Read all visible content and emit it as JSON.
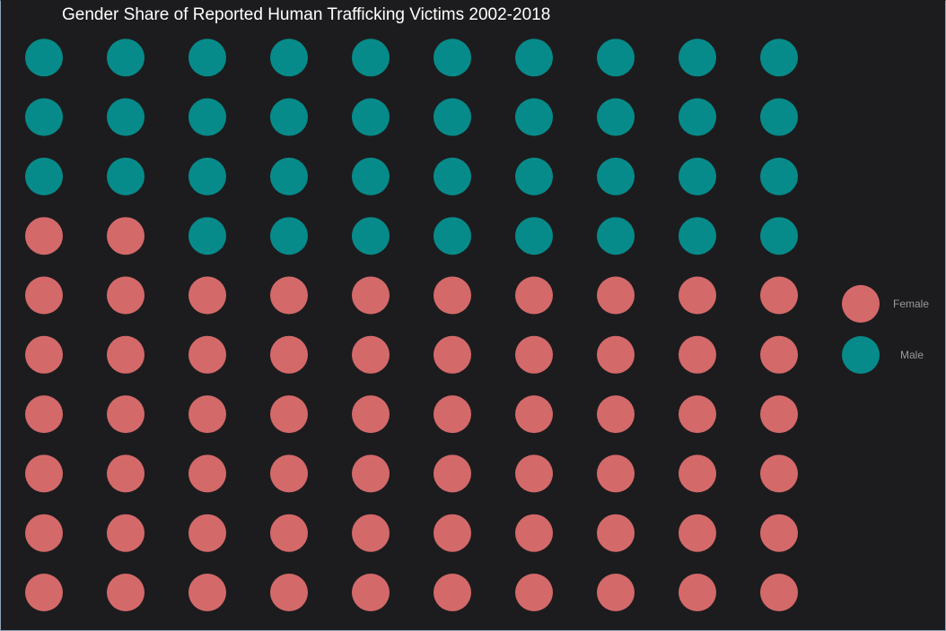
{
  "colors": {
    "background": "#1c1c1e",
    "title": "#ffffff",
    "legend_text": "#9a9a9a"
  },
  "chart_data": {
    "type": "waffle",
    "title": "Gender Share of Reported Human Trafficking Victims 2002-2018",
    "xlabel": "",
    "ylabel": "",
    "grid_rows": 10,
    "grid_cols": 10,
    "total_units": 100,
    "fill_order": "row-wise from bottom-left, left to right",
    "categories": [
      "Female",
      "Male"
    ],
    "values": [
      62,
      38
    ],
    "colors": [
      "#d4696a",
      "#068b8a"
    ],
    "legend_position": "right",
    "grid": false
  }
}
